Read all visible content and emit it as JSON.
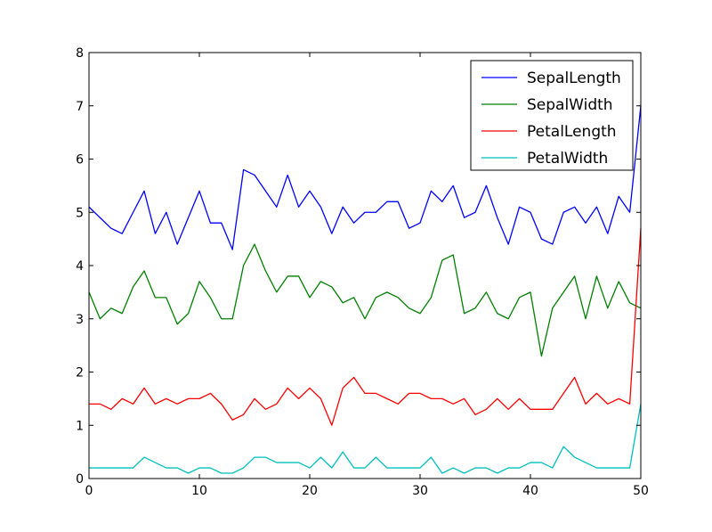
{
  "chart_data": {
    "type": "line",
    "title": "",
    "xlabel": "",
    "ylabel": "",
    "xlim": [
      0,
      50
    ],
    "ylim": [
      0,
      8
    ],
    "xticks": [
      0,
      10,
      20,
      30,
      40,
      50
    ],
    "yticks": [
      0,
      1,
      2,
      3,
      4,
      5,
      6,
      7,
      8
    ],
    "grid": false,
    "legend_position": "top-right",
    "x": [
      0,
      1,
      2,
      3,
      4,
      5,
      6,
      7,
      8,
      9,
      10,
      11,
      12,
      13,
      14,
      15,
      16,
      17,
      18,
      19,
      20,
      21,
      22,
      23,
      24,
      25,
      26,
      27,
      28,
      29,
      30,
      31,
      32,
      33,
      34,
      35,
      36,
      37,
      38,
      39,
      40,
      41,
      42,
      43,
      44,
      45,
      46,
      47,
      48,
      49,
      50
    ],
    "series": [
      {
        "name": "SepalLength",
        "color": "#0000ff",
        "values": [
          5.1,
          4.9,
          4.7,
          4.6,
          5.0,
          5.4,
          4.6,
          5.0,
          4.4,
          4.9,
          5.4,
          4.8,
          4.8,
          4.3,
          5.8,
          5.7,
          5.4,
          5.1,
          5.7,
          5.1,
          5.4,
          5.1,
          4.6,
          5.1,
          4.8,
          5.0,
          5.0,
          5.2,
          5.2,
          4.7,
          4.8,
          5.4,
          5.2,
          5.5,
          4.9,
          5.0,
          5.5,
          4.9,
          4.4,
          5.1,
          5.0,
          4.5,
          4.4,
          5.0,
          5.1,
          4.8,
          5.1,
          4.6,
          5.3,
          5.0,
          7.0
        ]
      },
      {
        "name": "SepalWidth",
        "color": "#008000",
        "values": [
          3.5,
          3.0,
          3.2,
          3.1,
          3.6,
          3.9,
          3.4,
          3.4,
          2.9,
          3.1,
          3.7,
          3.4,
          3.0,
          3.0,
          4.0,
          4.4,
          3.9,
          3.5,
          3.8,
          3.8,
          3.4,
          3.7,
          3.6,
          3.3,
          3.4,
          3.0,
          3.4,
          3.5,
          3.4,
          3.2,
          3.1,
          3.4,
          4.1,
          4.2,
          3.1,
          3.2,
          3.5,
          3.1,
          3.0,
          3.4,
          3.5,
          2.3,
          3.2,
          3.5,
          3.8,
          3.0,
          3.8,
          3.2,
          3.7,
          3.3,
          3.2
        ]
      },
      {
        "name": "PetalLength",
        "color": "#ff0000",
        "values": [
          1.4,
          1.4,
          1.3,
          1.5,
          1.4,
          1.7,
          1.4,
          1.5,
          1.4,
          1.5,
          1.5,
          1.6,
          1.4,
          1.1,
          1.2,
          1.5,
          1.3,
          1.4,
          1.7,
          1.5,
          1.7,
          1.5,
          1.0,
          1.7,
          1.9,
          1.6,
          1.6,
          1.5,
          1.4,
          1.6,
          1.6,
          1.5,
          1.5,
          1.4,
          1.5,
          1.2,
          1.3,
          1.5,
          1.3,
          1.5,
          1.3,
          1.3,
          1.3,
          1.6,
          1.9,
          1.4,
          1.6,
          1.4,
          1.5,
          1.4,
          4.7
        ]
      },
      {
        "name": "PetalWidth",
        "color": "#00bfbf",
        "values": [
          0.2,
          0.2,
          0.2,
          0.2,
          0.2,
          0.4,
          0.3,
          0.2,
          0.2,
          0.1,
          0.2,
          0.2,
          0.1,
          0.1,
          0.2,
          0.4,
          0.4,
          0.3,
          0.3,
          0.3,
          0.2,
          0.4,
          0.2,
          0.5,
          0.2,
          0.2,
          0.4,
          0.2,
          0.2,
          0.2,
          0.2,
          0.4,
          0.1,
          0.2,
          0.1,
          0.2,
          0.2,
          0.1,
          0.2,
          0.2,
          0.3,
          0.3,
          0.2,
          0.6,
          0.4,
          0.3,
          0.2,
          0.2,
          0.2,
          0.2,
          1.4
        ]
      }
    ]
  }
}
